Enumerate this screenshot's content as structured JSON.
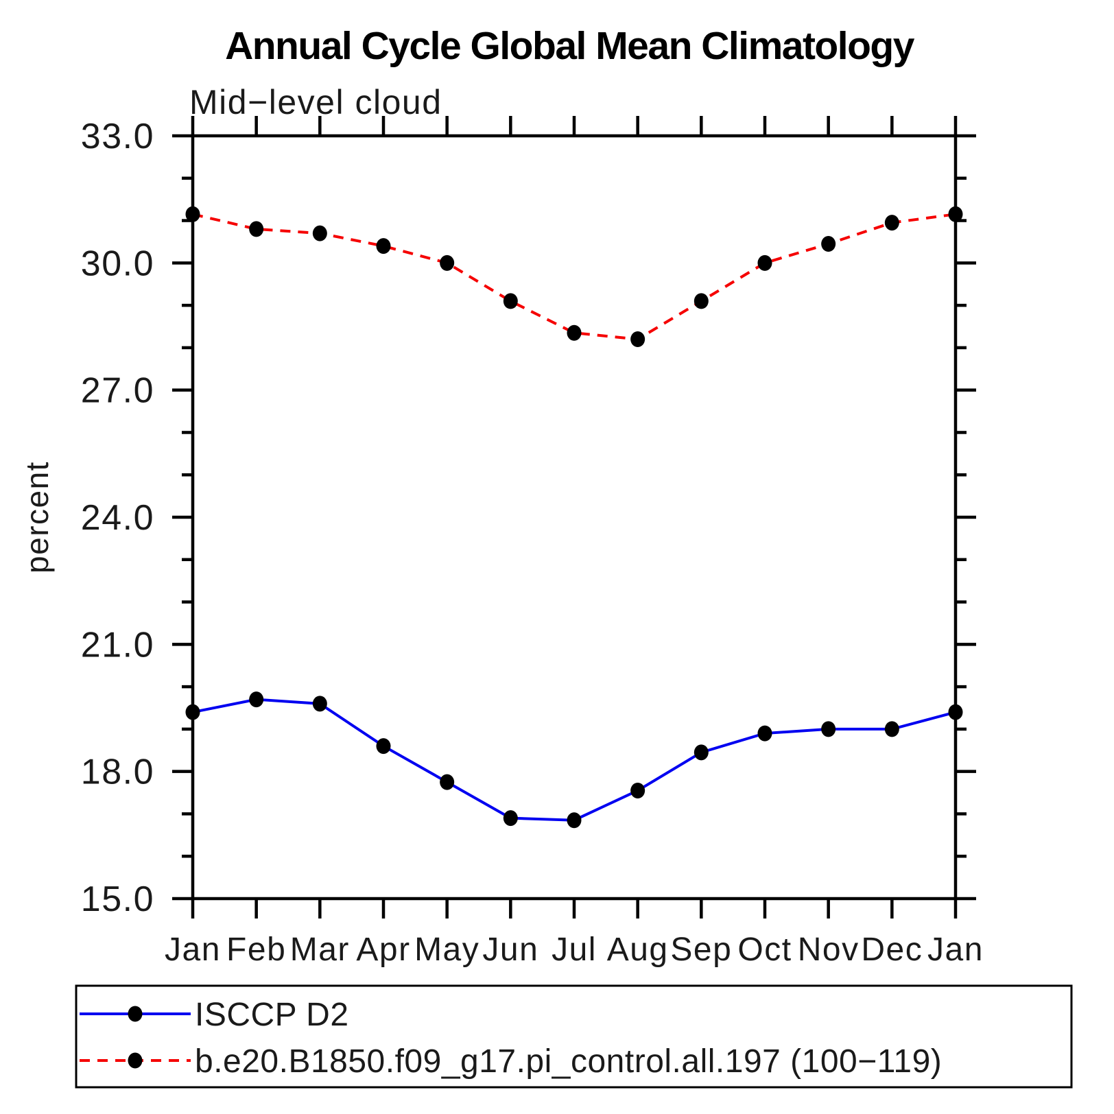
{
  "page": {
    "background": "#ffffff"
  },
  "chart_data": {
    "type": "line",
    "title": "Annual Cycle Global Mean Climatology",
    "subtitle": "Mid−level cloud",
    "ylabel": "percent",
    "x_categories": [
      "Jan",
      "Feb",
      "Mar",
      "Apr",
      "May",
      "Jun",
      "Jul",
      "Aug",
      "Sep",
      "Oct",
      "Nov",
      "Dec",
      "Jan"
    ],
    "ylim": [
      15.0,
      33.0
    ],
    "ytick_values": [
      33.0,
      30.0,
      27.0,
      24.0,
      21.0,
      18.0,
      15.0
    ],
    "ytick_labels": [
      "33.0",
      "30.0",
      "27.0",
      "24.0",
      "21.0",
      "18.0",
      "15.0"
    ],
    "minor_tick_step": 1.0,
    "grid": false,
    "legend_position": "bottom-left-box",
    "axis_color": "#000000",
    "marker_color": "#000000",
    "series": [
      {
        "name": "ISCCP D2",
        "color": "#0000f0",
        "line_style": "solid",
        "marker": "filled-circle",
        "values": [
          19.4,
          19.7,
          19.6,
          18.6,
          17.75,
          16.9,
          16.85,
          17.55,
          18.45,
          18.9,
          19.0,
          19.0,
          19.4
        ]
      },
      {
        "name": "b.e20.B1850.f09_g17.pi_control.all.197 (100−119)",
        "color": "#f50000",
        "line_style": "dashed",
        "marker": "filled-circle",
        "values": [
          31.15,
          30.8,
          30.7,
          30.4,
          30.0,
          29.1,
          28.35,
          28.2,
          29.1,
          30.0,
          30.45,
          30.95,
          31.15
        ]
      }
    ]
  }
}
